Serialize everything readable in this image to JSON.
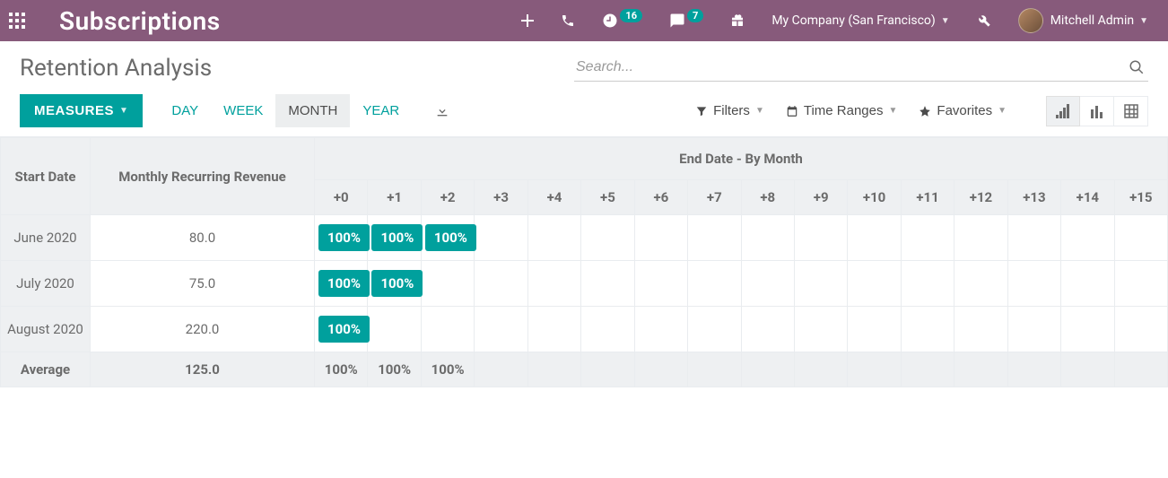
{
  "colors": {
    "primary": "#875a7b",
    "accent": "#00a09d",
    "muted_bg": "#eef0f2",
    "border": "#e9ecef",
    "text": "#6b6b6b"
  },
  "navbar": {
    "brand": "Subscriptions",
    "activities_badge": "16",
    "messages_badge": "7",
    "company": "My Company (San Francisco)",
    "user": "Mitchell Admin"
  },
  "page": {
    "title": "Retention Analysis",
    "search_placeholder": "Search..."
  },
  "toolbar": {
    "measures_label": "MEASURES",
    "periods": {
      "day": "DAY",
      "week": "WEEK",
      "month": "MONTH",
      "year": "YEAR",
      "active": "month"
    },
    "filters_label": "Filters",
    "timeranges_label": "Time Ranges",
    "favorites_label": "Favorites"
  },
  "cohort": {
    "row_header": "Start Date",
    "value_header": "Monthly Recurring Revenue",
    "super_header": "End Date - By Month",
    "offsets": [
      "+0",
      "+1",
      "+2",
      "+3",
      "+4",
      "+5",
      "+6",
      "+7",
      "+8",
      "+9",
      "+10",
      "+11",
      "+12",
      "+13",
      "+14",
      "+15"
    ],
    "rows": [
      {
        "label": "June 2020",
        "value": "80.0",
        "cells": [
          "100%",
          "100%",
          "100%",
          "",
          "",
          "",
          "",
          "",
          "",
          "",
          "",
          "",
          "",
          "",
          "",
          ""
        ]
      },
      {
        "label": "July 2020",
        "value": "75.0",
        "cells": [
          "100%",
          "100%",
          "",
          "",
          "",
          "",
          "",
          "",
          "",
          "",
          "",
          "",
          "",
          "",
          "",
          ""
        ]
      },
      {
        "label": "August 2020",
        "value": "220.0",
        "cells": [
          "100%",
          "",
          "",
          "",
          "",
          "",
          "",
          "",
          "",
          "",
          "",
          "",
          "",
          "",
          "",
          ""
        ]
      }
    ],
    "average": {
      "label": "Average",
      "value": "125.0",
      "cells": [
        "100%",
        "100%",
        "100%",
        "",
        "",
        "",
        "",
        "",
        "",
        "",
        "",
        "",
        "",
        "",
        "",
        ""
      ]
    }
  }
}
